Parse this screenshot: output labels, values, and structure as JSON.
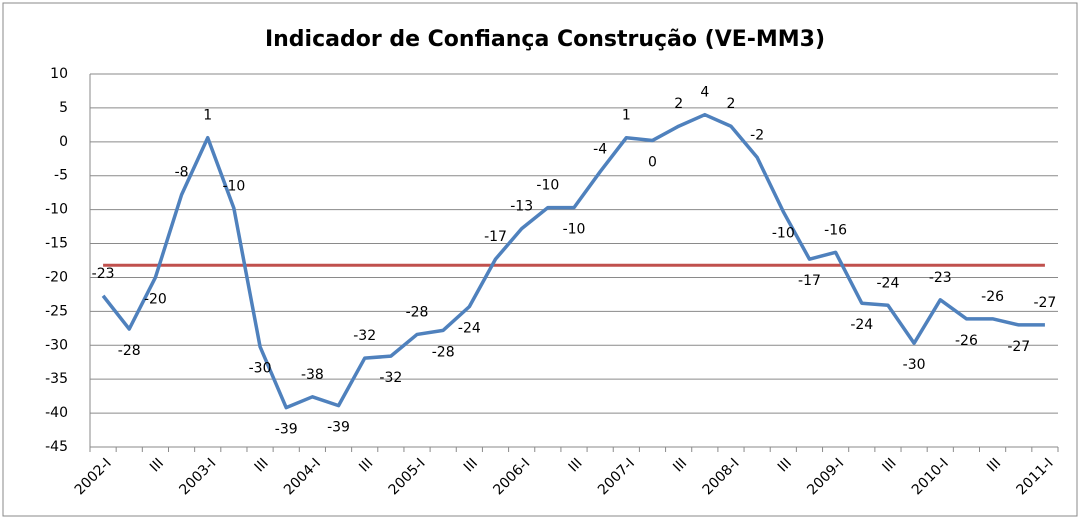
{
  "chart_data": {
    "type": "line",
    "title": "Indicador de Confiança Construção (VE-MM3)",
    "categories": [
      "2002-I",
      null,
      "III",
      null,
      "2003-I",
      null,
      "III",
      null,
      "2004-I",
      null,
      "III",
      null,
      "2005-I",
      null,
      "III",
      null,
      "2006-I",
      null,
      "III",
      null,
      "2007-I",
      null,
      "III",
      null,
      "2008-I",
      null,
      "III",
      null,
      "2009-I",
      null,
      "III",
      null,
      "2010-I",
      null,
      "III",
      null,
      "2011-I"
    ],
    "series": [
      {
        "color": "#4f81bd",
        "values": [
          -22.7,
          -27.6,
          -20,
          -7.8,
          0.6,
          -9.8,
          -30.2,
          -39.2,
          -37.6,
          -38.9,
          -31.9,
          -31.6,
          -28.4,
          -27.8,
          -24.3,
          -17.3,
          -12.8,
          -9.7,
          -9.7,
          -4.4,
          0.6,
          0.2,
          2.3,
          4.0,
          2.3,
          -2.3,
          -10.3,
          -17.3,
          -16.3,
          -23.8,
          -24.1,
          -29.7,
          -23.3,
          -26.1,
          -26.1,
          -27,
          -27
        ],
        "value_labels": [
          "-23",
          "-28",
          "-20",
          "-8",
          "1",
          "-10",
          "-30",
          "-39",
          "-38",
          "-39",
          "-32",
          "-32",
          "-28",
          "-28",
          "-24",
          "-17",
          "-13",
          "-10",
          "-10",
          "-4",
          "1",
          "0",
          "2",
          "4",
          "2",
          "-2",
          "-10",
          "-17",
          "-16",
          "-24",
          "-24",
          "-30",
          "-23",
          "-26",
          "-26",
          "-27",
          "-27"
        ]
      }
    ],
    "reference_line": {
      "value": -18.2,
      "color": "#c0504d"
    },
    "ylim": [
      -45,
      10
    ],
    "yticks": [
      -45,
      -40,
      -35,
      -30,
      -25,
      -20,
      -15,
      -10,
      -5,
      0,
      5,
      10
    ],
    "grid": true
  }
}
